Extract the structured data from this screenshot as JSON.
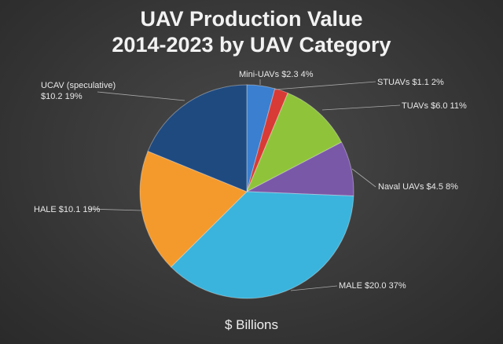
{
  "chart_data": {
    "type": "pie",
    "title": [
      "UAV Production Value",
      "2014-2023 by UAV Category"
    ],
    "xlabel": "$ Billions",
    "slices": [
      {
        "name": "Mini-UAVs",
        "value": 2.3,
        "label": "Mini-UAVs $2.3 4%",
        "color": "#3a7fd0"
      },
      {
        "name": "STUAVs",
        "value": 1.1,
        "label": "STUAVs $1.1 2%",
        "color": "#d83a36"
      },
      {
        "name": "TUAVs",
        "value": 6.0,
        "label": "TUAVs $6.0 11%",
        "color": "#8fc43a"
      },
      {
        "name": "Naval UAVs",
        "value": 4.5,
        "label": "Naval UAVs $4.5 8%",
        "color": "#7a58a8"
      },
      {
        "name": "MALE",
        "value": 20.0,
        "label": "MALE $20.0 37%",
        "color": "#3ab4dc"
      },
      {
        "name": "HALE",
        "value": 10.1,
        "label": "HALE $10.1 19%",
        "color": "#f49a2c"
      },
      {
        "name": "UCAV (speculative)",
        "value": 10.2,
        "label": [
          "UCAV (speculative)",
          "$10.2 19%"
        ],
        "color": "#1f4a80"
      }
    ]
  }
}
